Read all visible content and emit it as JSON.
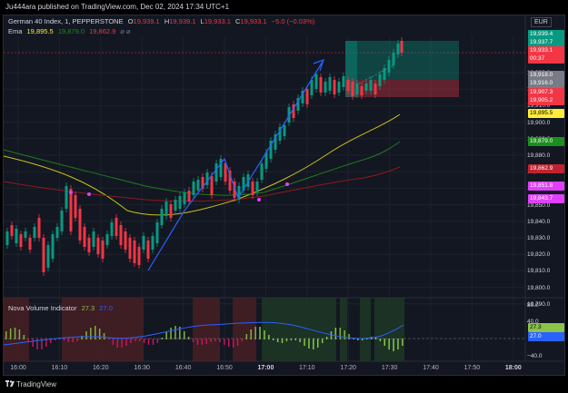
{
  "header": {
    "published": "Ju444ara published on TradingView.com, Dec 02, 2024 17:34 UTC+1"
  },
  "currency": "EUR",
  "legend": {
    "symbol": "German 40 Index, 1, PEPPERSTONE",
    "o_label": "O",
    "o_val": "19,939.1",
    "h_label": "H",
    "h_val": "19,939.1",
    "l_label": "L",
    "l_val": "19,933.1",
    "c_label": "C",
    "c_val": "19,933.1",
    "change": "−5.0 (−0.03%)",
    "ema_label": "Ema",
    "ema_v1": "19,895.5",
    "ema_v2": "19,879.0",
    "ema_v3": "19,862.9",
    "ema_icons": "⌀ ⌀"
  },
  "price_scale": [
    "19,930.0",
    "19,920.0",
    "19,910.0",
    "19,900.0",
    "19,890.0",
    "19,880.0",
    "19,870.0",
    "19,860.0",
    "19,850.0",
    "19,840.0",
    "19,830.0",
    "19,820.0",
    "19,810.0",
    "19,800.0",
    "19,790.0"
  ],
  "price_tags": [
    {
      "text": "19,939.4",
      "bg": "#089981",
      "fg": "#ffffff"
    },
    {
      "text": "19,937.7",
      "bg": "#089981",
      "fg": "#ffffff"
    },
    {
      "text": "19,933.1",
      "bg": "#f23645",
      "fg": "#ffffff"
    },
    {
      "text": "00:37",
      "bg": "#f23645",
      "fg": "#ffffff"
    },
    {
      "text": "19,918.0",
      "bg": "#787b86",
      "fg": "#ffffff"
    },
    {
      "text": "19,916.0",
      "bg": "#787b86",
      "fg": "#ffffff"
    },
    {
      "text": "19,907.3",
      "bg": "#f23645",
      "fg": "#ffffff"
    },
    {
      "text": "19,905.2",
      "bg": "#f23645",
      "fg": "#ffffff"
    },
    {
      "text": "19,895.5",
      "bg": "#ffeb3b",
      "fg": "#000000"
    },
    {
      "text": "19,879.0",
      "bg": "#1b8f1b",
      "fg": "#ffffff"
    },
    {
      "text": "19,862.9",
      "bg": "#c0232f",
      "fg": "#ffffff"
    },
    {
      "text": "19,851.8",
      "bg": "#e040fb",
      "fg": "#ffffff"
    },
    {
      "text": "19,843.7",
      "bg": "#e040fb",
      "fg": "#ffffff"
    }
  ],
  "indicator": {
    "name": "Nova Volume Indicator",
    "v1": "27.3",
    "v2": "27.0",
    "scale": [
      "80.0",
      "40.0",
      "−40.0"
    ],
    "tag1": "27.3",
    "tag2": "27.0"
  },
  "time_axis": [
    "16:00",
    "16:10",
    "16:20",
    "16:30",
    "16:40",
    "16:50",
    "17:00",
    "17:10",
    "17:20",
    "17:30",
    "17:40",
    "17:50",
    "18:00"
  ],
  "footer": {
    "brand": "TradingView"
  },
  "colors": {
    "up": "#089981",
    "down": "#f23645",
    "ema_fast": "#c9c01d",
    "ema_mid": "#1f7a1f",
    "ema_slow": "#8b1a1a",
    "arrow": "#2962ff"
  }
}
